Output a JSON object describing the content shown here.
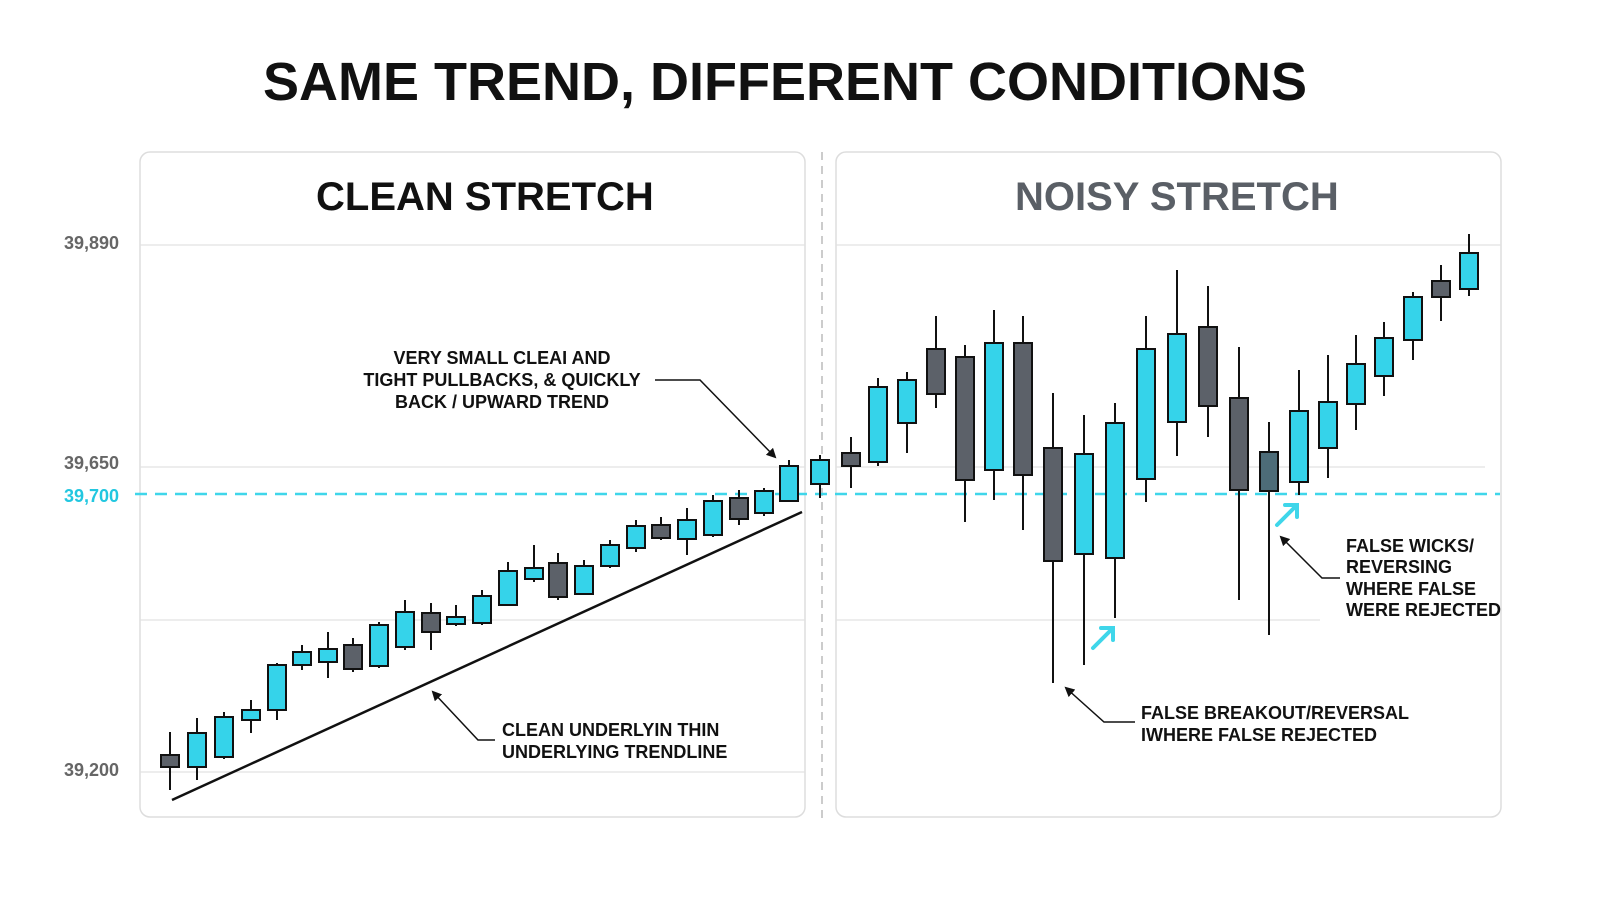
{
  "header": {
    "title": "SAME TREND, DIFFERENT CONDITIONS"
  },
  "panels": [
    {
      "title": "CLEAN STRETCH"
    },
    {
      "title": "NOISY STRETCH"
    }
  ],
  "price_labels": [
    "39,890",
    "39,650",
    "39,700",
    "39,200"
  ],
  "annotations": [
    {
      "lines": [
        "VERY SMALL CLEAI AND",
        "TIGHT PULLBACKS, & QUICKLY",
        "BACK / UPWARD TREND"
      ]
    },
    {
      "lines": [
        "CLEAN UNDERLYIN THIN",
        "UNDERLYING TRENDLINE"
      ]
    },
    {
      "lines": [
        "FALSE WICKS/",
        "REVERSING",
        "WHERE FALSE",
        "WERE REJECTED"
      ]
    },
    {
      "lines": [
        "FALSE BREAKOUT/REVERSAL",
        "IWHERE FALSE REJECTED"
      ]
    }
  ]
}
